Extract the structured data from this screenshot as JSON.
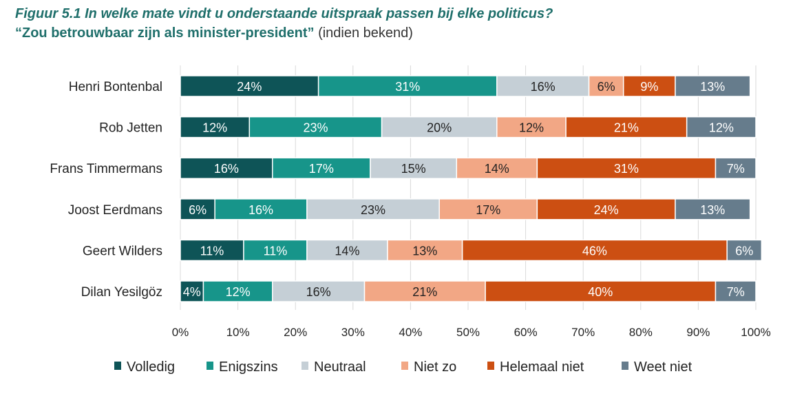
{
  "title": "Figuur 5.1 In welke mate vindt u onderstaande uitspraak passen bij elke politicus?",
  "subtitle_main": "“Zou betrouwbaar zijn als minister-president”",
  "subtitle_note": "(indien bekend)",
  "chart_data": {
    "type": "bar",
    "orientation": "horizontal",
    "stacked": "percent",
    "title": "Figuur 5.1 In welke mate vindt u onderstaande uitspraak passen bij elke politicus?",
    "categories": [
      "Henri Bontenbal",
      "Rob Jetten",
      "Frans Timmermans",
      "Joost Eerdmans",
      "Geert Wilders",
      "Dilan Yesilgöz"
    ],
    "series": [
      {
        "name": "Volledig",
        "color": "#0e5457",
        "label_color": "#ffffff",
        "values": [
          24,
          12,
          16,
          6,
          11,
          4
        ]
      },
      {
        "name": "Enigszins",
        "color": "#17958a",
        "label_color": "#ffffff",
        "values": [
          31,
          23,
          17,
          16,
          11,
          12
        ]
      },
      {
        "name": "Neutraal",
        "color": "#c5cfd6",
        "label_color": "#222222",
        "values": [
          16,
          20,
          15,
          23,
          14,
          16
        ]
      },
      {
        "name": "Niet zo",
        "color": "#f2a785",
        "label_color": "#222222",
        "values": [
          6,
          12,
          14,
          17,
          13,
          21
        ]
      },
      {
        "name": "Helemaal niet",
        "color": "#cc4f12",
        "label_color": "#ffffff",
        "values": [
          9,
          21,
          31,
          24,
          46,
          40
        ]
      },
      {
        "name": "Weet niet",
        "color": "#667c8c",
        "label_color": "#ffffff",
        "values": [
          13,
          12,
          7,
          13,
          6,
          7
        ]
      }
    ],
    "x_ticks": [
      "0%",
      "10%",
      "20%",
      "30%",
      "40%",
      "50%",
      "60%",
      "70%",
      "80%",
      "90%",
      "100%"
    ],
    "xlim": [
      0,
      100
    ],
    "grid": true,
    "legend": "bottom"
  }
}
